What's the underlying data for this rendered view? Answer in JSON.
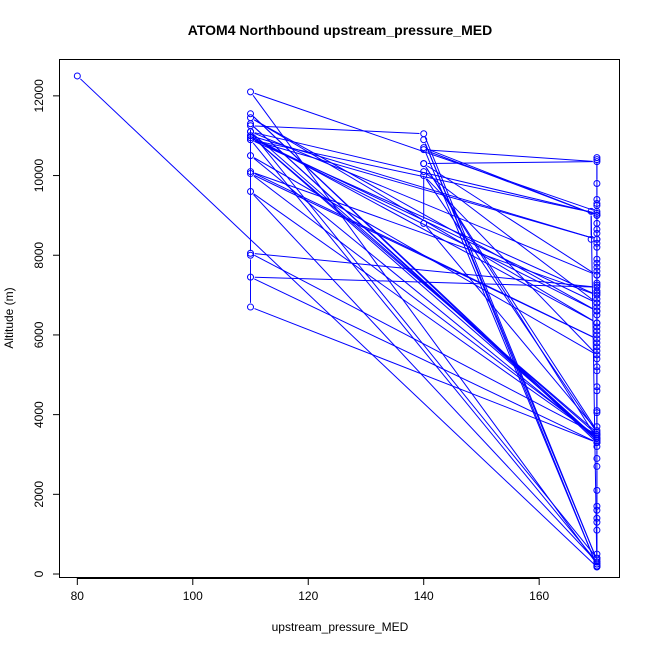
{
  "chart_data": {
    "type": "line",
    "title": "ATOM4 Northbound upstream_pressure_MED",
    "xlabel": "upstream_pressure_MED",
    "ylabel": "Altitude (m)",
    "xlim": [
      77,
      174
    ],
    "ylim": [
      -100,
      12900
    ],
    "xticks": [
      80,
      100,
      120,
      140,
      160
    ],
    "yticks": [
      0,
      2000,
      4000,
      6000,
      8000,
      10000,
      12000
    ],
    "grid": false,
    "legend": "none",
    "color": "#0000ff",
    "series": [
      {
        "values": [
          [
            80,
            12500
          ],
          [
            170,
            180
          ],
          [
            170,
            250
          ],
          [
            110,
            12100
          ],
          [
            170,
            9100
          ],
          [
            170,
            3300
          ],
          [
            110,
            11550
          ],
          [
            170,
            3350
          ],
          [
            110,
            11300
          ],
          [
            170,
            3400
          ],
          [
            110,
            11000
          ],
          [
            170,
            8400
          ],
          [
            110,
            10900
          ],
          [
            170,
            7000
          ],
          [
            110,
            10100
          ],
          [
            170,
            5900
          ],
          [
            110,
            10050
          ],
          [
            170,
            3450
          ],
          [
            110,
            9600
          ],
          [
            170,
            300
          ],
          [
            110,
            10900
          ],
          [
            170,
            9050
          ],
          [
            110,
            11100
          ],
          [
            170,
            3500
          ],
          [
            110,
            8050
          ],
          [
            170,
            7200
          ],
          [
            110,
            7450
          ],
          [
            170,
            3300
          ],
          [
            110,
            6700
          ],
          [
            110,
            8000
          ],
          [
            110,
            11250
          ],
          [
            140,
            11050
          ],
          [
            170,
            350
          ],
          [
            140,
            10900
          ],
          [
            170,
            200
          ],
          [
            140,
            10700
          ],
          [
            170,
            9000
          ],
          [
            140,
            10650
          ],
          [
            170,
            10350
          ],
          [
            140,
            10300
          ],
          [
            170,
            3600
          ],
          [
            140,
            8800
          ],
          [
            140,
            10100
          ],
          [
            170,
            6800
          ],
          [
            110,
            10950
          ],
          [
            170,
            6600
          ],
          [
            110,
            11450
          ],
          [
            170,
            6300
          ],
          [
            110,
            11000
          ],
          [
            170,
            3550
          ],
          [
            140,
            10000
          ],
          [
            170,
            5500
          ],
          [
            110,
            10500
          ],
          [
            170,
            3400
          ],
          [
            140,
            10300
          ],
          [
            170,
            7500
          ],
          [
            110,
            11100
          ],
          [
            170,
            400
          ],
          [
            170,
            10450
          ],
          [
            170,
            10400
          ],
          [
            170,
            9800
          ],
          [
            170,
            9400
          ],
          [
            170,
            9300
          ],
          [
            170,
            9250
          ],
          [
            170,
            9000
          ],
          [
            170,
            8800
          ],
          [
            170,
            8650
          ],
          [
            170,
            8550
          ],
          [
            170,
            8400
          ],
          [
            170,
            8300
          ],
          [
            170,
            8200
          ],
          [
            170,
            7900
          ],
          [
            170,
            7800
          ],
          [
            170,
            7700
          ],
          [
            170,
            7600
          ],
          [
            170,
            7500
          ],
          [
            170,
            7300
          ],
          [
            170,
            7250
          ],
          [
            170,
            7100
          ],
          [
            170,
            7050
          ],
          [
            170,
            6900
          ],
          [
            170,
            6800
          ],
          [
            170,
            6700
          ],
          [
            170,
            6600
          ],
          [
            170,
            6500
          ],
          [
            170,
            6300
          ],
          [
            170,
            6200
          ],
          [
            170,
            6100
          ],
          [
            170,
            6000
          ],
          [
            170,
            5800
          ],
          [
            170,
            5700
          ],
          [
            170,
            5600
          ],
          [
            170,
            5400
          ],
          [
            170,
            5200
          ],
          [
            170,
            5100
          ],
          [
            170,
            4700
          ],
          [
            170,
            4600
          ],
          [
            170,
            4100
          ],
          [
            170,
            4050
          ],
          [
            170,
            3700
          ],
          [
            170,
            3500
          ],
          [
            170,
            3400
          ],
          [
            170,
            3350
          ],
          [
            170,
            3300
          ],
          [
            170,
            3200
          ],
          [
            170,
            2900
          ],
          [
            170,
            2700
          ],
          [
            170,
            2100
          ],
          [
            170,
            1700
          ],
          [
            170,
            1600
          ],
          [
            170,
            1400
          ],
          [
            170,
            1300
          ],
          [
            170,
            1100
          ],
          [
            170,
            500
          ],
          [
            170,
            400
          ],
          [
            170,
            300
          ],
          [
            170,
            250
          ],
          [
            170,
            200
          ],
          [
            170,
            180
          ],
          [
            169,
            9100
          ],
          [
            169,
            8400
          ]
        ]
      }
    ]
  }
}
